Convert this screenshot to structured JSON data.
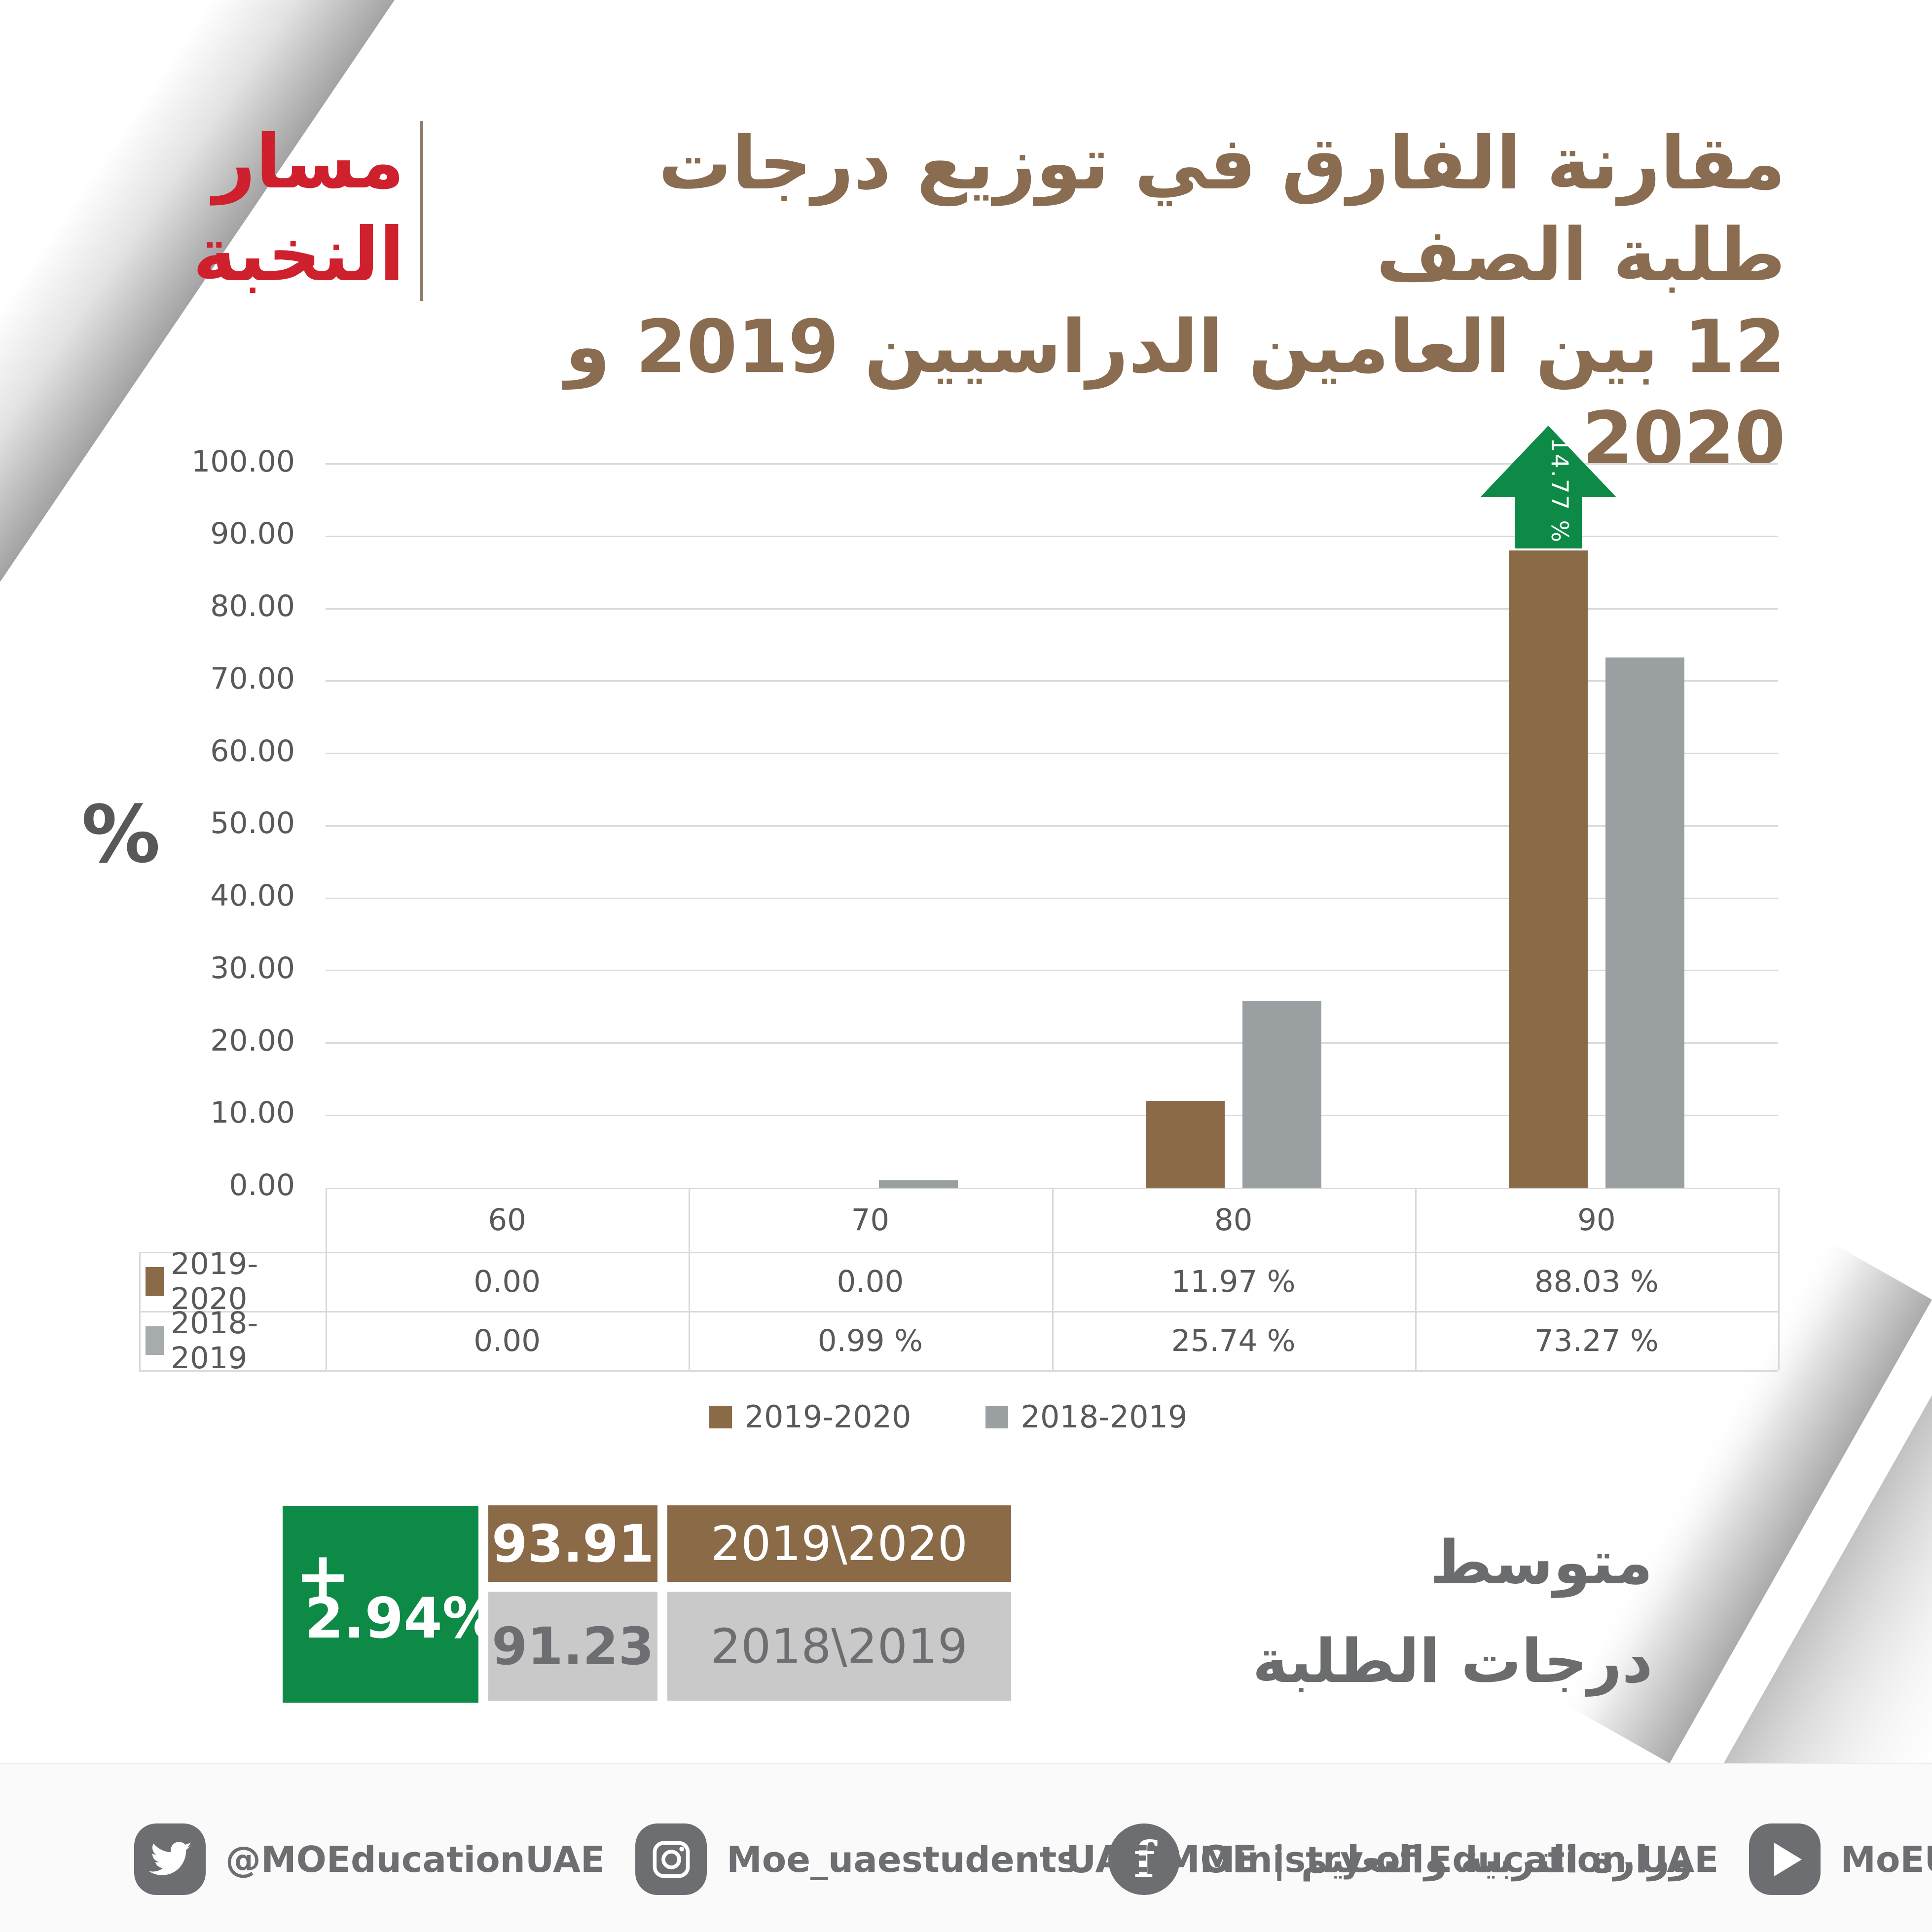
{
  "colors": {
    "brand_brown": "#8a6a47",
    "brand_gray": "#9aa0a2",
    "summary_gray": "#c9c9ca",
    "green": "#0d8a46",
    "red": "#cf202e",
    "title_brown": "#8a6c50",
    "text_gray": "#595959",
    "footer_gray": "#6d6e71",
    "grid_gray": "#d9d9d9"
  },
  "header": {
    "badge": {
      "line1": "مسار",
      "line2": "النخبة"
    },
    "title": {
      "line1": "مقارنة الفارق في توزيع درجات طلبة الصف",
      "line2": "12 بين العامين الدراسيين 2019 و 2020"
    }
  },
  "chart_data": {
    "type": "bar",
    "title": "مقارنة الفارق في توزيع درجات طلبة الصف 12 بين العامين الدراسيين 2019 و 2020",
    "categories": [
      "60",
      "70",
      "80",
      "90"
    ],
    "series": [
      {
        "name": "2019-2020",
        "color": "#8a6a47",
        "values": [
          0,
          0,
          11.97,
          88.03
        ],
        "labels": [
          "0.00",
          "0.00",
          "11.97 %",
          "88.03 %"
        ]
      },
      {
        "name": "2018-2019",
        "color": "#9aa0a2",
        "values": [
          0,
          0.99,
          25.74,
          73.27
        ],
        "labels": [
          "0.00",
          "0.99 %",
          "25.74 %",
          "73.27 %"
        ]
      }
    ],
    "ylabel": "%",
    "ylim": [
      0,
      100
    ],
    "ytick_step": 10,
    "yticks": [
      "100.00",
      "90.00",
      "80.00",
      "70.00",
      "60.00",
      "50.00",
      "40.00",
      "30.00",
      "20.00",
      "10.00",
      "0.00"
    ],
    "grid": true,
    "legend_position": "bottom",
    "data_table": true,
    "annotation": {
      "label": "14.77 %",
      "category": "90",
      "series": "2019-2020",
      "shape": "up-arrow",
      "color": "#0d8a46"
    }
  },
  "summary": {
    "heading_line1": "متوسط",
    "heading_line2": "درجات الطلبة",
    "gain": {
      "plus": "+",
      "value": "2.94%"
    },
    "rows": [
      {
        "year": "2019\\2020",
        "average": "93.91"
      },
      {
        "year": "2018\\2019",
        "average": "91.23"
      }
    ]
  },
  "footer": {
    "social": [
      {
        "icon": "twitter-icon",
        "label": "@MOEducationUAE"
      },
      {
        "icon": "instagram-icon",
        "label": "Moe_uaestudents"
      },
      {
        "icon": "facebook-icon",
        "label": "Ministry of Education UAE"
      },
      {
        "icon": "youtube-icon",
        "label": "MoEUAE"
      }
    ],
    "brand": {
      "en": "UAE MOE",
      "separator": "|",
      "ar": "وزارة التربية والتعليم"
    }
  }
}
